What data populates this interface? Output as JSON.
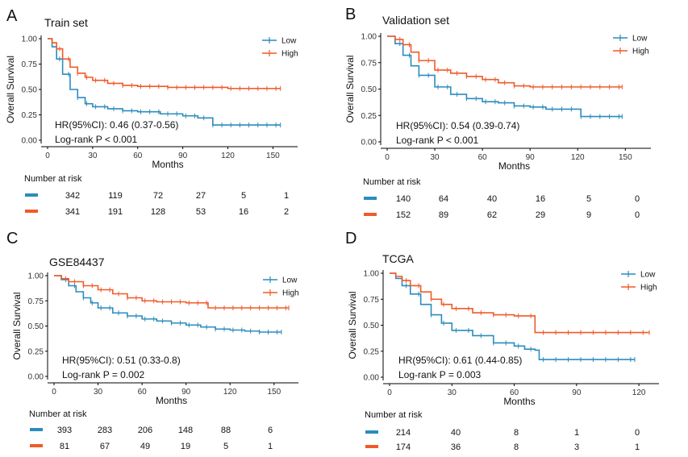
{
  "chart_data": [
    {
      "type": "line",
      "panel": "A",
      "title": "Train set",
      "xlabel": "Months",
      "ylabel": "Overall Survival",
      "xlim": [
        0,
        160
      ],
      "ylim": [
        0,
        1
      ],
      "xticks": [
        0,
        30,
        60,
        90,
        120,
        150
      ],
      "yticks": [
        "0.00",
        "0.25",
        "0.50",
        "0.75",
        "1.00"
      ],
      "legend": "top-right",
      "colors": {
        "Low": "#2b8cbe",
        "High": "#f05a28"
      },
      "series": [
        {
          "name": "Low",
          "x": [
            0,
            3,
            6,
            10,
            15,
            20,
            25,
            30,
            40,
            50,
            60,
            75,
            90,
            100,
            110,
            120,
            155
          ],
          "values": [
            1.0,
            0.92,
            0.8,
            0.65,
            0.5,
            0.42,
            0.36,
            0.33,
            0.31,
            0.29,
            0.28,
            0.26,
            0.24,
            0.22,
            0.15,
            0.15,
            0.15
          ]
        },
        {
          "name": "High",
          "x": [
            0,
            3,
            6,
            10,
            15,
            20,
            25,
            30,
            40,
            50,
            60,
            80,
            100,
            120,
            155
          ],
          "values": [
            1.0,
            0.96,
            0.9,
            0.8,
            0.72,
            0.66,
            0.62,
            0.59,
            0.56,
            0.54,
            0.53,
            0.52,
            0.52,
            0.51,
            0.51
          ]
        }
      ],
      "stats": {
        "hr": "HR(95%CI): 0.46 (0.37-0.56)",
        "p": "Log-rank P < 0.001"
      },
      "risk_title": "Number at risk",
      "risk": {
        "Low": [
          "342",
          "119",
          "72",
          "27",
          "5",
          "1"
        ],
        "High": [
          "341",
          "191",
          "128",
          "53",
          "16",
          "2"
        ]
      }
    },
    {
      "type": "line",
      "panel": "B",
      "title": "Validation set",
      "xlabel": "Months",
      "ylabel": "Overall Survival",
      "xlim": [
        0,
        160
      ],
      "ylim": [
        0,
        1
      ],
      "xticks": [
        0,
        30,
        60,
        90,
        120,
        150
      ],
      "yticks": [
        "0.00",
        "0.25",
        "0.50",
        "0.75",
        "1.00"
      ],
      "legend": "top-right",
      "colors": {
        "Low": "#2b8cbe",
        "High": "#f05a28"
      },
      "series": [
        {
          "name": "Low",
          "x": [
            0,
            5,
            10,
            15,
            20,
            30,
            40,
            50,
            60,
            70,
            80,
            90,
            100,
            110,
            122,
            130,
            148
          ],
          "values": [
            1.0,
            0.93,
            0.82,
            0.72,
            0.63,
            0.52,
            0.45,
            0.41,
            0.38,
            0.37,
            0.34,
            0.33,
            0.31,
            0.31,
            0.24,
            0.24,
            0.24
          ]
        },
        {
          "name": "High",
          "x": [
            0,
            5,
            10,
            15,
            20,
            30,
            40,
            50,
            60,
            70,
            80,
            90,
            100,
            120,
            148
          ],
          "values": [
            1.0,
            0.97,
            0.92,
            0.85,
            0.77,
            0.68,
            0.65,
            0.62,
            0.59,
            0.56,
            0.53,
            0.52,
            0.52,
            0.52,
            0.52
          ]
        }
      ],
      "stats": {
        "hr": "HR(95%CI): 0.54 (0.39-0.74)",
        "p": "Log-rank P < 0.001"
      },
      "risk_title": "Number at risk",
      "risk": {
        "Low": [
          "140",
          "64",
          "40",
          "16",
          "5",
          "0"
        ],
        "High": [
          "152",
          "89",
          "62",
          "29",
          "9",
          "0"
        ]
      }
    },
    {
      "type": "line",
      "panel": "C",
      "title": "GSE84437",
      "xlabel": "Months",
      "ylabel": "Overall Survival",
      "xlim": [
        0,
        160
      ],
      "ylim": [
        0,
        1
      ],
      "xticks": [
        0,
        30,
        60,
        90,
        120,
        150
      ],
      "yticks": [
        "0.00",
        "0.25",
        "0.50",
        "0.75",
        "1.00"
      ],
      "legend": "top-right",
      "colors": {
        "Low": "#2b8cbe",
        "High": "#f05a28"
      },
      "series": [
        {
          "name": "Low",
          "x": [
            0,
            5,
            10,
            15,
            20,
            25,
            30,
            40,
            50,
            60,
            70,
            80,
            90,
            100,
            110,
            120,
            130,
            140,
            155
          ],
          "values": [
            1.0,
            0.96,
            0.9,
            0.84,
            0.78,
            0.73,
            0.68,
            0.63,
            0.6,
            0.57,
            0.55,
            0.53,
            0.51,
            0.49,
            0.47,
            0.46,
            0.45,
            0.44,
            0.44
          ]
        },
        {
          "name": "High",
          "x": [
            0,
            5,
            10,
            20,
            30,
            40,
            50,
            60,
            70,
            80,
            90,
            100,
            105,
            120,
            140,
            160
          ],
          "values": [
            1.0,
            0.97,
            0.94,
            0.9,
            0.86,
            0.82,
            0.78,
            0.75,
            0.74,
            0.74,
            0.73,
            0.73,
            0.68,
            0.68,
            0.68,
            0.68
          ]
        }
      ],
      "stats": {
        "hr": "HR(95%CI): 0.51 (0.33-0.8)",
        "p": "Log-rank P = 0.002"
      },
      "risk_title": "Number at risk",
      "risk": {
        "Low": [
          "393",
          "283",
          "206",
          "148",
          "88",
          "6"
        ],
        "High": [
          "81",
          "67",
          "49",
          "19",
          "5",
          "1"
        ]
      }
    },
    {
      "type": "line",
      "panel": "D",
      "title": "TCGA",
      "xlabel": "Months",
      "ylabel": "Overall Survival",
      "xlim": [
        0,
        125
      ],
      "ylim": [
        0,
        1
      ],
      "xticks": [
        0,
        30,
        60,
        90,
        120
      ],
      "yticks": [
        "0.00",
        "0.25",
        "0.50",
        "0.75",
        "1.00"
      ],
      "legend": "top-right",
      "colors": {
        "Low": "#2b8cbe",
        "High": "#f05a28"
      },
      "series": [
        {
          "name": "Low",
          "x": [
            0,
            3,
            6,
            10,
            15,
            20,
            25,
            30,
            40,
            50,
            60,
            65,
            70,
            72,
            80,
            100,
            118
          ],
          "values": [
            1.0,
            0.95,
            0.88,
            0.8,
            0.7,
            0.6,
            0.52,
            0.45,
            0.4,
            0.33,
            0.3,
            0.27,
            0.26,
            0.17,
            0.17,
            0.17,
            0.17
          ]
        },
        {
          "name": "High",
          "x": [
            0,
            3,
            6,
            10,
            15,
            20,
            25,
            30,
            40,
            50,
            60,
            65,
            70,
            80,
            100,
            125
          ],
          "values": [
            1.0,
            0.97,
            0.93,
            0.88,
            0.82,
            0.75,
            0.7,
            0.66,
            0.62,
            0.6,
            0.59,
            0.59,
            0.43,
            0.43,
            0.43,
            0.43
          ]
        }
      ],
      "stats": {
        "hr": "HR(95%CI): 0.61 (0.44-0.85)",
        "p": "Log-rank P = 0.003"
      },
      "risk_title": "Number at risk",
      "risk": {
        "Low": [
          "214",
          "40",
          "8",
          "1",
          "0"
        ],
        "High": [
          "174",
          "36",
          "8",
          "3",
          "1"
        ]
      }
    }
  ]
}
